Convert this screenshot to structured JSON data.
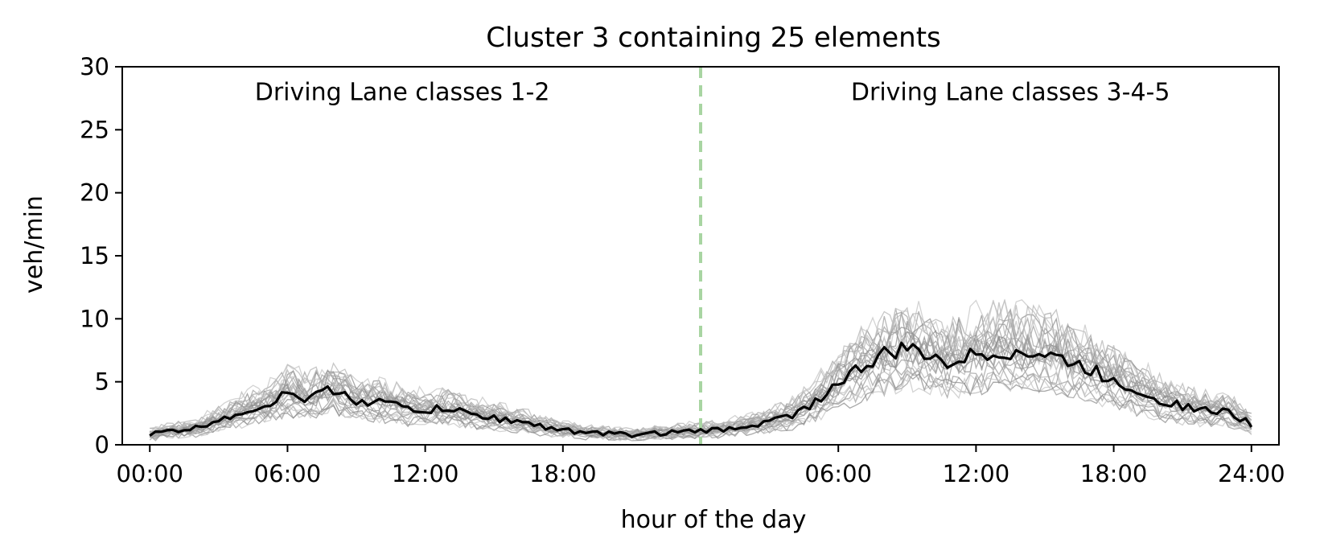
{
  "chart_data": {
    "type": "line",
    "title": "Cluster 3 containing 25 elements",
    "xlabel": "hour of the day",
    "ylabel": "veh/min",
    "ylim": [
      0,
      30
    ],
    "yticks": [
      0,
      5,
      10,
      15,
      20,
      25,
      30
    ],
    "xlim": [
      -1.2,
      49.2
    ],
    "xticks": [
      {
        "at": 0,
        "label": "00:00"
      },
      {
        "at": 6,
        "label": "06:00"
      },
      {
        "at": 12,
        "label": "12:00"
      },
      {
        "at": 18,
        "label": "18:00"
      },
      {
        "at": 30,
        "label": "06:00"
      },
      {
        "at": 36,
        "label": "12:00"
      },
      {
        "at": 42,
        "label": "18:00"
      },
      {
        "at": 48,
        "label": "24:00"
      }
    ],
    "divider": {
      "at": 24,
      "color": "#a8d5a2"
    },
    "annotations": [
      {
        "text": "Driving Lane classes 1-2",
        "x": 11,
        "y": 28
      },
      {
        "text": "Driving Lane classes 3-4-5",
        "x": 37.5,
        "y": 28
      }
    ],
    "grid": false,
    "colors": {
      "member": "#9a9a9a",
      "centroid": "#000000"
    },
    "centroid": {
      "x": [
        0,
        1,
        2,
        3,
        4,
        5,
        6,
        7,
        8,
        9,
        10,
        11,
        12,
        13,
        14,
        15,
        16,
        17,
        18,
        19,
        20,
        21,
        22,
        23,
        24,
        25,
        26,
        27,
        28,
        29,
        30,
        31,
        32,
        33,
        34,
        35,
        36,
        37,
        38,
        39,
        40,
        41,
        42,
        43,
        44,
        45,
        46,
        47,
        48
      ],
      "y": [
        0.8,
        1.1,
        1.3,
        2.0,
        2.6,
        3.1,
        4.0,
        3.7,
        4.4,
        3.5,
        3.4,
        3.0,
        2.7,
        2.9,
        2.4,
        2.1,
        1.9,
        1.5,
        1.2,
        0.9,
        0.9,
        0.8,
        0.9,
        1.0,
        1.1,
        1.2,
        1.5,
        1.8,
        2.4,
        3.4,
        4.9,
        6.1,
        7.1,
        7.6,
        7.0,
        6.6,
        7.1,
        7.4,
        7.3,
        7.1,
        6.6,
        5.9,
        5.1,
        4.3,
        3.6,
        3.1,
        2.7,
        2.6,
        1.6
      ]
    },
    "members_note": "",
    "series": []
  }
}
